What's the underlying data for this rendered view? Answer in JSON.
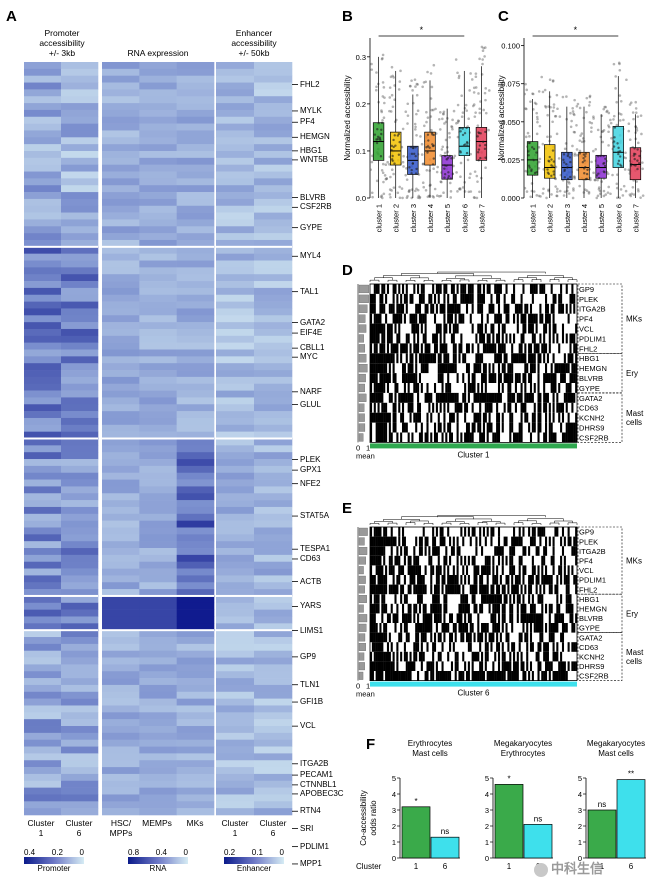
{
  "panel_a": {
    "letter": "A",
    "header_promoter": [
      "Promoter",
      "accessibility",
      "+/- 3kb"
    ],
    "header_rna": "RNA expression",
    "header_enhancer": [
      "Enhancer",
      "accessibility",
      "+/- 50kb"
    ],
    "genes": [
      {
        "name": "FHL2",
        "pos": 0.03
      },
      {
        "name": "MYLK",
        "pos": 0.065
      },
      {
        "name": "PF4",
        "pos": 0.08
      },
      {
        "name": "HEMGN",
        "pos": 0.1
      },
      {
        "name": "HBG1",
        "pos": 0.118
      },
      {
        "name": "WNT5B",
        "pos": 0.13
      },
      {
        "name": "BLVRB",
        "pos": 0.18
      },
      {
        "name": "CSF2RB",
        "pos": 0.193
      },
      {
        "name": "GYPE",
        "pos": 0.22
      },
      {
        "name": "MYL4",
        "pos": 0.258
      },
      {
        "name": "TAL1",
        "pos": 0.305
      },
      {
        "name": "GATA2",
        "pos": 0.346
      },
      {
        "name": "EIF4E",
        "pos": 0.36
      },
      {
        "name": "CBLL1",
        "pos": 0.38
      },
      {
        "name": "MYC",
        "pos": 0.392
      },
      {
        "name": "NARF",
        "pos": 0.438
      },
      {
        "name": "GLUL",
        "pos": 0.455
      },
      {
        "name": "PLEK",
        "pos": 0.528
      },
      {
        "name": "GPX1",
        "pos": 0.542
      },
      {
        "name": "NFE2",
        "pos": 0.56
      },
      {
        "name": "STAT5A",
        "pos": 0.603
      },
      {
        "name": "TESPA1",
        "pos": 0.647
      },
      {
        "name": "CD63",
        "pos": 0.66
      },
      {
        "name": "ACTB",
        "pos": 0.69
      },
      {
        "name": "YARS",
        "pos": 0.723
      },
      {
        "name": "LIMS1",
        "pos": 0.755
      },
      {
        "name": "GP9",
        "pos": 0.79
      },
      {
        "name": "TLN1",
        "pos": 0.827
      },
      {
        "name": "GFI1B",
        "pos": 0.85
      },
      {
        "name": "VCL",
        "pos": 0.882
      },
      {
        "name": "ITGA2B",
        "pos": 0.932
      },
      {
        "name": "PECAM1",
        "pos": 0.947
      },
      {
        "name": "CTNNBL1",
        "pos": 0.96
      },
      {
        "name": "APOBEC3C",
        "pos": 0.972
      },
      {
        "name": "RTN4",
        "pos": 0.995
      },
      {
        "name": "SRI",
        "pos": 1.018
      },
      {
        "name": "PDLIM1",
        "pos": 1.042
      },
      {
        "name": "MPP1",
        "pos": 1.065
      }
    ],
    "col_labels_promoter": [
      [
        "Cluster",
        "1"
      ],
      [
        "Cluster",
        "6"
      ]
    ],
    "col_labels_rna": [
      [
        "HSC/",
        "MPPs"
      ],
      [
        "MEMPs"
      ],
      [
        "MKs"
      ]
    ],
    "col_labels_enhancer": [
      [
        "Cluster",
        "1"
      ],
      [
        "Cluster",
        "6"
      ]
    ],
    "legend_promoter": {
      "ticks": [
        "0.4",
        "0.2",
        "0"
      ],
      "label": "Promoter"
    },
    "legend_rna": {
      "ticks": [
        "0.8",
        "0.4",
        "0"
      ],
      "label": "RNA"
    },
    "legend_enhancer": {
      "ticks": [
        "0.2",
        "0.1",
        "0"
      ],
      "label": "Enhancer"
    }
  },
  "panel_b": {
    "letter": "B",
    "ylabel": "Normalized accessibility",
    "yticks": [
      "0.0",
      "0.1",
      "0.2",
      "0.3"
    ],
    "ylim": [
      0,
      0.34
    ],
    "sig": "*",
    "categories": [
      "cluster 1",
      "cluster 2",
      "cluster 3",
      "cluster 4",
      "cluster 5",
      "cluster 6",
      "cluster 7"
    ],
    "boxes": [
      {
        "q1": 0.08,
        "med": 0.12,
        "q3": 0.16,
        "lo": 0.0,
        "hi": 0.3,
        "color": "#2ca02c"
      },
      {
        "q1": 0.07,
        "med": 0.1,
        "q3": 0.14,
        "lo": 0.0,
        "hi": 0.27,
        "color": "#f2c200"
      },
      {
        "q1": 0.05,
        "med": 0.08,
        "q3": 0.11,
        "lo": 0.0,
        "hi": 0.22,
        "color": "#2f55c8"
      },
      {
        "q1": 0.07,
        "med": 0.1,
        "q3": 0.14,
        "lo": 0.0,
        "hi": 0.25,
        "color": "#f08a2a"
      },
      {
        "q1": 0.04,
        "med": 0.07,
        "q3": 0.09,
        "lo": 0.0,
        "hi": 0.19,
        "color": "#8a2bd0"
      },
      {
        "q1": 0.09,
        "med": 0.11,
        "q3": 0.15,
        "lo": 0.0,
        "hi": 0.27,
        "color": "#3ed3e0"
      },
      {
        "q1": 0.08,
        "med": 0.12,
        "q3": 0.15,
        "lo": 0.0,
        "hi": 0.28,
        "color": "#e23a55"
      }
    ]
  },
  "panel_c": {
    "letter": "C",
    "ylabel": "Normalized accessibility",
    "yticks": [
      "0.000",
      "0.025",
      "0.050",
      "0.075",
      "0.100"
    ],
    "ylim": [
      0,
      0.105
    ],
    "sig": "*",
    "categories": [
      "cluster 1",
      "cluster 2",
      "cluster 3",
      "cluster 4",
      "cluster 5",
      "cluster 6",
      "cluster 7"
    ],
    "boxes": [
      {
        "q1": 0.015,
        "med": 0.025,
        "q3": 0.037,
        "lo": 0.0,
        "hi": 0.065,
        "color": "#2ca02c"
      },
      {
        "q1": 0.013,
        "med": 0.02,
        "q3": 0.035,
        "lo": 0.0,
        "hi": 0.07,
        "color": "#f2c200"
      },
      {
        "q1": 0.012,
        "med": 0.02,
        "q3": 0.03,
        "lo": 0.0,
        "hi": 0.06,
        "color": "#2f55c8"
      },
      {
        "q1": 0.012,
        "med": 0.02,
        "q3": 0.03,
        "lo": 0.0,
        "hi": 0.06,
        "color": "#f08a2a"
      },
      {
        "q1": 0.013,
        "med": 0.02,
        "q3": 0.028,
        "lo": 0.0,
        "hi": 0.055,
        "color": "#8a2bd0"
      },
      {
        "q1": 0.02,
        "med": 0.03,
        "q3": 0.047,
        "lo": 0.0,
        "hi": 0.08,
        "color": "#3ed3e0"
      },
      {
        "q1": 0.012,
        "med": 0.022,
        "q3": 0.033,
        "lo": 0.0,
        "hi": 0.055,
        "color": "#e23a55"
      }
    ]
  },
  "panel_d": {
    "letter": "D",
    "genes": [
      "GP9",
      "PLEK",
      "ITGA2B",
      "PF4",
      "VCL",
      "PDLIM1",
      "FHL2",
      "HBG1",
      "HEMGN",
      "BLVRB",
      "GYPE",
      "GATA2",
      "CD63",
      "KCNH2",
      "DHRS9",
      "CSF2RB"
    ],
    "groups": [
      {
        "label": "MKs",
        "n": 7
      },
      {
        "label": "Ery",
        "n": 4
      },
      {
        "label": [
          "Mast",
          "cells"
        ],
        "n": 5
      }
    ],
    "mean_ticks": [
      "0",
      "1"
    ],
    "mean_label": "mean",
    "cluster_label": "Cluster 1",
    "bar_color": "#2fa84f"
  },
  "panel_e": {
    "letter": "E",
    "genes": [
      "GP9",
      "PLEK",
      "ITGA2B",
      "PF4",
      "VCL",
      "PDLIM1",
      "FHL2",
      "HBG1",
      "HEMGN",
      "BLVRB",
      "GYPE",
      "GATA2",
      "CD63",
      "KCNH2",
      "DHRS9",
      "CSF2RB"
    ],
    "groups": [
      {
        "label": "MKs",
        "n": 7
      },
      {
        "label": "Ery",
        "n": 4
      },
      {
        "label": [
          "Mast",
          "cells"
        ],
        "n": 5
      }
    ],
    "mean_ticks": [
      "0",
      "1"
    ],
    "mean_label": "mean",
    "cluster_label": "Cluster 6",
    "bar_color": "#3ee0ec"
  },
  "panel_f": {
    "letter": "F",
    "ylabel": [
      "Co-accessibility",
      "odds ratio"
    ],
    "xlabel": "Cluster",
    "chart_data": [
      {
        "type": "bar",
        "title": [
          "Erythrocytes",
          "Mast cells"
        ],
        "categories": [
          "1",
          "6"
        ],
        "values": [
          3.2,
          1.3
        ],
        "sig": [
          "*",
          "ns"
        ],
        "ylim": [
          0,
          5
        ],
        "yticks": [
          "0",
          "1",
          "2",
          "3",
          "4",
          "5"
        ],
        "colors": [
          "#3aaa4a",
          "#3ee0ec"
        ]
      },
      {
        "type": "bar",
        "title": [
          "Megakaryocytes",
          "Erythrocytes"
        ],
        "categories": [
          "1",
          "6"
        ],
        "values": [
          4.6,
          2.1
        ],
        "sig": [
          "*",
          "ns"
        ],
        "ylim": [
          0,
          5
        ],
        "yticks": [
          "0",
          "1",
          "2",
          "3",
          "4",
          "5"
        ],
        "colors": [
          "#3aaa4a",
          "#3ee0ec"
        ]
      },
      {
        "type": "bar",
        "title": [
          "Megakaryocytes",
          "Mast cells"
        ],
        "categories": [
          "1",
          "6"
        ],
        "values": [
          3.0,
          4.9
        ],
        "sig": [
          "ns",
          "**"
        ],
        "ylim": [
          0,
          5
        ],
        "yticks": [
          "0",
          "1",
          "2",
          "3",
          "4",
          "5"
        ],
        "colors": [
          "#3aaa4a",
          "#3ee0ec"
        ]
      }
    ]
  },
  "watermark": "中科生信"
}
